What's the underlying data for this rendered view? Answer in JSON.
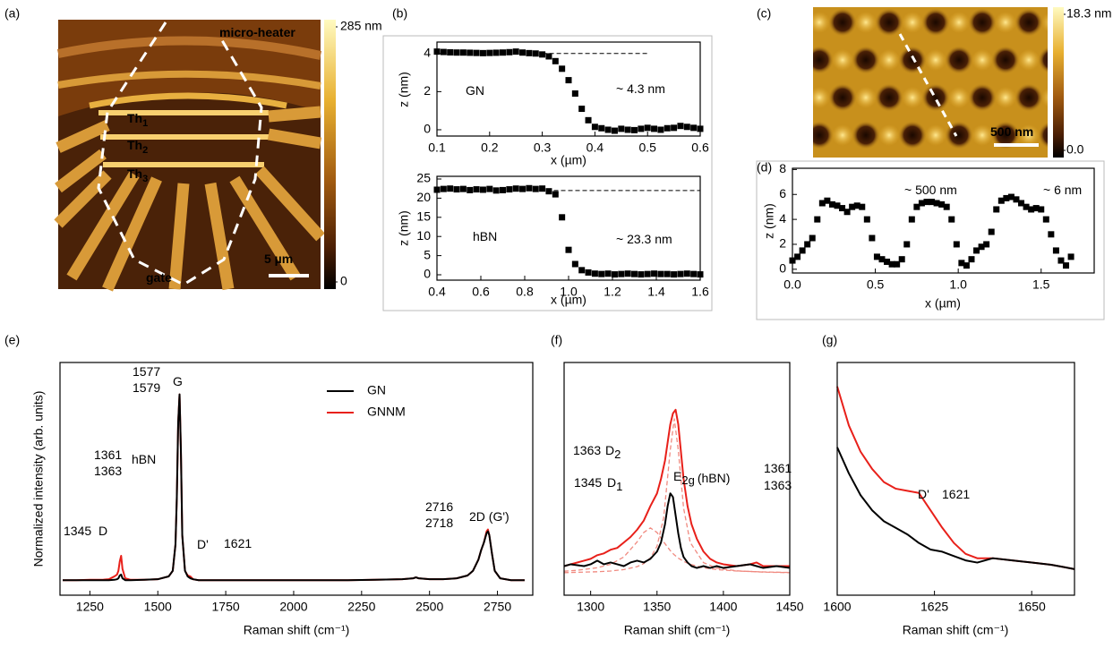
{
  "chart_data": [
    {
      "type": "image",
      "panel": "(a)",
      "colorbar": {
        "clim": [
          0,
          285
        ],
        "ticks": [
          {
            "value": 285,
            "label": "285 nm"
          },
          0
        ]
      },
      "labels": [
        {
          "text": "micro-heater"
        },
        {
          "text": "Th",
          "sub": "1"
        },
        {
          "text": "Th",
          "sub": "2"
        },
        {
          "text": "Th",
          "sub": "3"
        },
        {
          "text": "gate"
        },
        {
          "text": "5 µm"
        }
      ]
    },
    {
      "type": "scatter",
      "panel": "(b)",
      "xlabel": "x (µm)",
      "ylabel": "z (nm)",
      "xlim": [
        0.1,
        0.6
      ],
      "ylim": [
        -0.33,
        4.6
      ],
      "xticks": [
        0.1,
        0.2,
        0.3,
        0.4,
        0.5,
        0.6
      ],
      "yticks": [
        0,
        2,
        4
      ],
      "x": [
        0.1,
        0.1125,
        0.125,
        0.1375,
        0.15,
        0.1625,
        0.175,
        0.1875,
        0.2,
        0.2125,
        0.225,
        0.2375,
        0.25,
        0.2625,
        0.275,
        0.2875,
        0.3,
        0.3125,
        0.325,
        0.3375,
        0.35,
        0.3625,
        0.375,
        0.3875,
        0.4,
        0.4125,
        0.425,
        0.4375,
        0.45,
        0.4625,
        0.475,
        0.4875,
        0.5,
        0.5125,
        0.525,
        0.5375,
        0.55,
        0.5625,
        0.575,
        0.5875,
        0.6
      ],
      "series": [
        {
          "color": "#000000",
          "values": [
            4.1,
            4.08,
            4.06,
            4.05,
            4.05,
            4.04,
            4.03,
            4.02,
            4.03,
            4.04,
            4.05,
            4.07,
            4.1,
            4.05,
            4.02,
            4.0,
            3.95,
            3.85,
            3.6,
            3.2,
            2.6,
            1.9,
            1.1,
            0.5,
            0.15,
            0.08,
            0.0,
            -0.05,
            0.05,
            0.0,
            -0.02,
            0.05,
            0.1,
            0.05,
            0.0,
            0.08,
            0.1,
            0.2,
            0.15,
            0.1,
            0.05
          ]
        }
      ],
      "reference_line": {
        "y": 4.0,
        "x": [
          0.3,
          0.5
        ]
      },
      "annotations": [
        {
          "text": "GN"
        },
        {
          "text": "~ 4.3 nm"
        }
      ]
    },
    {
      "type": "scatter",
      "xlabel": "x (µm)",
      "ylabel": "z (nm)",
      "xlim": [
        0.4,
        1.6
      ],
      "ylim": [
        -1.4,
        25.7
      ],
      "xticks": [
        0.4,
        0.6,
        0.8,
        {
          "value": 1,
          "label": "1.0"
        },
        1.2,
        1.4,
        1.6
      ],
      "yticks": [
        0,
        5,
        10,
        15,
        20,
        25
      ],
      "x": [
        0.4,
        0.43,
        0.46,
        0.49,
        0.52,
        0.55,
        0.58,
        0.61,
        0.64,
        0.67,
        0.7,
        0.73,
        0.76,
        0.79,
        0.82,
        0.85,
        0.88,
        0.91,
        0.94,
        0.97,
        1.0,
        1.03,
        1.06,
        1.09,
        1.12,
        1.15,
        1.18,
        1.21,
        1.24,
        1.27,
        1.3,
        1.33,
        1.36,
        1.39,
        1.42,
        1.45,
        1.48,
        1.51,
        1.54,
        1.57,
        1.6
      ],
      "series": [
        {
          "color": "#000000",
          "values": [
            22.2,
            22.4,
            22.5,
            22.3,
            22.4,
            22.1,
            22.3,
            22.2,
            22.4,
            22.0,
            22.1,
            22.3,
            22.5,
            22.4,
            22.6,
            22.4,
            22.5,
            21.8,
            21.0,
            15.0,
            6.5,
            2.8,
            1.2,
            0.6,
            0.3,
            0.2,
            0.3,
            0.1,
            0.2,
            0.3,
            0.2,
            0.1,
            0.2,
            0.3,
            0.2,
            0.2,
            0.1,
            0.2,
            0.3,
            0.2,
            0.1
          ]
        }
      ],
      "reference_line": {
        "y": 22,
        "x": [
          0.9,
          1.6
        ]
      },
      "annotations": [
        {
          "text": "hBN"
        },
        {
          "text": "~ 23.3 nm"
        }
      ]
    },
    {
      "type": "image",
      "panel": "(c)",
      "colorbar": {
        "clim": [
          0,
          18.3
        ],
        "ticks": [
          {
            "value": 18.3,
            "label": "18.3 nm"
          },
          {
            "value": 0,
            "label": "0.0"
          }
        ]
      },
      "labels": [
        {
          "text": "500 nm"
        }
      ]
    },
    {
      "type": "scatter",
      "panel": "(d)",
      "xlabel": "x (µm)",
      "ylabel": "z (nm)",
      "xlim": [
        0,
        1.82
      ],
      "ylim": [
        -0.3,
        8.1
      ],
      "xticks": [
        {
          "value": 0,
          "label": "0.0"
        },
        0.5,
        {
          "value": 1,
          "label": "1.0"
        },
        1.5
      ],
      "yticks": [
        0,
        2,
        4,
        6,
        8
      ],
      "x": [
        0,
        0.03,
        0.06,
        0.09,
        0.12,
        0.15,
        0.18,
        0.21,
        0.24,
        0.27,
        0.3,
        0.33,
        0.36,
        0.39,
        0.42,
        0.45,
        0.48,
        0.51,
        0.54,
        0.57,
        0.6,
        0.63,
        0.66,
        0.69,
        0.72,
        0.75,
        0.78,
        0.81,
        0.84,
        0.87,
        0.9,
        0.93,
        0.96,
        0.99,
        1.02,
        1.05,
        1.08,
        1.11,
        1.14,
        1.17,
        1.2,
        1.23,
        1.26,
        1.29,
        1.32,
        1.35,
        1.38,
        1.41,
        1.44,
        1.47,
        1.5,
        1.53,
        1.56,
        1.59,
        1.62,
        1.65,
        1.68
      ],
      "series": [
        {
          "color": "#000000",
          "values": [
            0.7,
            1.0,
            1.5,
            2.0,
            2.5,
            4.0,
            5.3,
            5.5,
            5.2,
            5.1,
            4.9,
            4.6,
            5.0,
            5.1,
            5.0,
            4.0,
            2.5,
            1.0,
            0.8,
            0.6,
            0.4,
            0.4,
            0.8,
            2.0,
            4.0,
            5.0,
            5.3,
            5.4,
            5.4,
            5.3,
            5.2,
            5.0,
            4.0,
            2.0,
            0.5,
            0.3,
            0.8,
            1.5,
            1.8,
            2.0,
            3.0,
            4.8,
            5.5,
            5.7,
            5.8,
            5.6,
            5.3,
            5.0,
            4.8,
            4.9,
            4.8,
            4.0,
            2.8,
            1.5,
            0.7,
            0.3,
            1.0
          ]
        }
      ],
      "annotations": [
        {
          "text": "~ 500 nm"
        },
        {
          "text": "~ 6 nm"
        }
      ]
    },
    {
      "type": "line",
      "panel": "(e)",
      "xlabel": "Raman shift (cm⁻¹)",
      "ylabel": "Normalized intensity (arb. units)",
      "xlim": [
        1140,
        2880
      ],
      "ylim": [
        -0.07,
        1.17
      ],
      "xticks": [
        1250,
        1500,
        1750,
        2000,
        2250,
        2500,
        2750
      ],
      "legend": "upper right",
      "x": [
        1150,
        1200,
        1250,
        1300,
        1320,
        1340,
        1350,
        1355,
        1360,
        1365,
        1370,
        1380,
        1400,
        1450,
        1500,
        1540,
        1555,
        1565,
        1570,
        1575,
        1580,
        1585,
        1590,
        1600,
        1610,
        1620,
        1630,
        1650,
        1700,
        1800,
        1900,
        2000,
        2100,
        2200,
        2300,
        2400,
        2440,
        2450,
        2460,
        2500,
        2550,
        2600,
        2640,
        2660,
        2680,
        2690,
        2700,
        2710,
        2715,
        2720,
        2730,
        2740,
        2760,
        2800,
        2850
      ],
      "series": [
        {
          "name": "GN",
          "color": "#000000",
          "values": [
            0.01,
            0.01,
            0.01,
            0.01,
            0.01,
            0.012,
            0.015,
            0.02,
            0.035,
            0.04,
            0.02,
            0.01,
            0.01,
            0.012,
            0.015,
            0.03,
            0.06,
            0.2,
            0.45,
            0.85,
            1.0,
            0.7,
            0.25,
            0.06,
            0.03,
            0.02,
            0.015,
            0.01,
            0.01,
            0.01,
            0.01,
            0.01,
            0.01,
            0.01,
            0.012,
            0.015,
            0.02,
            0.025,
            0.02,
            0.015,
            0.015,
            0.02,
            0.035,
            0.06,
            0.12,
            0.17,
            0.21,
            0.26,
            0.27,
            0.25,
            0.15,
            0.06,
            0.02,
            0.01,
            0.01
          ]
        },
        {
          "name": "GNNM",
          "color": "#e8201a",
          "values": [
            0.01,
            0.01,
            0.012,
            0.013,
            0.015,
            0.03,
            0.04,
            0.06,
            0.11,
            0.14,
            0.07,
            0.02,
            0.012,
            0.012,
            0.015,
            0.03,
            0.06,
            0.2,
            0.45,
            0.85,
            1.0,
            0.7,
            0.25,
            0.06,
            0.035,
            0.03,
            0.015,
            0.01,
            0.01,
            0.01,
            0.01,
            0.01,
            0.01,
            0.01,
            0.012,
            0.015,
            0.02,
            0.025,
            0.02,
            0.015,
            0.015,
            0.02,
            0.035,
            0.06,
            0.12,
            0.17,
            0.21,
            0.27,
            0.28,
            0.25,
            0.15,
            0.06,
            0.02,
            0.01,
            0.01
          ]
        }
      ],
      "annotations": [
        {
          "text": "1577"
        },
        {
          "text": "1579",
          "color": "#e8201a"
        },
        {
          "text": "G"
        },
        {
          "text": "1361"
        },
        {
          "text": "1363",
          "color": "#e8201a"
        },
        {
          "text": "hBN"
        },
        {
          "text": "1345",
          "color": "#e8201a"
        },
        {
          "text": "D"
        },
        {
          "text": "D'"
        },
        {
          "text": "1621",
          "color": "#e8201a"
        },
        {
          "text": "2716"
        },
        {
          "text": "2718",
          "color": "#e8201a"
        },
        {
          "text": "2D (G')"
        }
      ]
    },
    {
      "type": "line",
      "panel": "(f)",
      "xlabel": "Raman shift (cm⁻¹)",
      "xlim": [
        1280,
        1450
      ],
      "ylim": [
        -0.04,
        1.24
      ],
      "xticks": [
        1300,
        1350,
        1400,
        1450
      ],
      "x": [
        1280,
        1285,
        1295,
        1300,
        1305,
        1310,
        1315,
        1320,
        1325,
        1330,
        1335,
        1340,
        1345,
        1350,
        1353,
        1356,
        1358,
        1360,
        1362,
        1364,
        1366,
        1368,
        1370,
        1373,
        1376,
        1380,
        1385,
        1390,
        1395,
        1400,
        1410,
        1420,
        1425,
        1430,
        1440,
        1450
      ],
      "series": [
        {
          "color": "#000000",
          "values": [
            0.12,
            0.13,
            0.12,
            0.13,
            0.15,
            0.13,
            0.14,
            0.13,
            0.12,
            0.14,
            0.15,
            0.14,
            0.16,
            0.2,
            0.25,
            0.35,
            0.45,
            0.52,
            0.5,
            0.4,
            0.3,
            0.22,
            0.17,
            0.14,
            0.12,
            0.11,
            0.12,
            0.11,
            0.12,
            0.11,
            0.12,
            0.13,
            0.12,
            0.11,
            0.12,
            0.11
          ]
        },
        {
          "color": "#e8201a",
          "values": [
            0.12,
            0.13,
            0.15,
            0.16,
            0.18,
            0.19,
            0.21,
            0.22,
            0.25,
            0.28,
            0.32,
            0.37,
            0.45,
            0.52,
            0.6,
            0.7,
            0.8,
            0.9,
            0.96,
            0.98,
            0.9,
            0.75,
            0.6,
            0.45,
            0.35,
            0.27,
            0.2,
            0.16,
            0.14,
            0.13,
            0.12,
            0.13,
            0.14,
            0.12,
            0.12,
            0.12
          ]
        },
        {
          "color": "#f08a80",
          "style": "dashed",
          "x": [
            1280,
            1290,
            1305,
            1315,
            1325,
            1335,
            1340,
            1345,
            1350,
            1355,
            1360,
            1363,
            1366,
            1370,
            1375,
            1385,
            1395,
            1410,
            1430,
            1450
          ],
          "values": [
            0.092,
            0.097,
            0.111,
            0.13,
            0.17,
            0.253,
            0.305,
            0.33,
            0.305,
            0.253,
            0.205,
            0.182,
            0.164,
            0.146,
            0.13,
            0.111,
            0.101,
            0.093,
            0.088,
            0.085
          ]
        },
        {
          "color": "#f08a80",
          "style": "dashed",
          "x": [
            1280,
            1290,
            1305,
            1315,
            1325,
            1335,
            1340,
            1345,
            1350,
            1355,
            1360,
            1363,
            1366,
            1370,
            1375,
            1385,
            1395,
            1410,
            1430,
            1450
          ],
          "values": [
            0.084,
            0.086,
            0.089,
            0.093,
            0.101,
            0.117,
            0.134,
            0.165,
            0.229,
            0.386,
            0.76,
            0.93,
            0.76,
            0.44,
            0.25,
            0.139,
            0.109,
            0.094,
            0.087,
            0.084
          ]
        }
      ],
      "annotations": [
        {
          "text": "1363",
          "color": "#e8201a"
        },
        {
          "text": "D",
          "sub": "2"
        },
        {
          "text": "1345",
          "color": "#e8201a"
        },
        {
          "text": "D",
          "sub": "1"
        },
        {
          "text": "E",
          "sub": "2g",
          "after": "(hBN)"
        },
        {
          "text": "1361"
        },
        {
          "text": "1363",
          "color": "#e8201a"
        }
      ]
    },
    {
      "type": "line",
      "panel": "(g)",
      "xlabel": "Raman shift (cm⁻¹)",
      "xlim": [
        1600,
        1661
      ],
      "ylim": [
        -0.06,
        1.01
      ],
      "xticks": [
        1600,
        1625,
        1650
      ],
      "x": [
        1600,
        1603,
        1606,
        1609,
        1612,
        1615,
        1618,
        1621,
        1624,
        1627,
        1630,
        1633,
        1636,
        1640,
        1645,
        1650,
        1655,
        1658,
        1661
      ],
      "series": [
        {
          "color": "#000000",
          "values": [
            0.62,
            0.5,
            0.4,
            0.33,
            0.28,
            0.25,
            0.22,
            0.18,
            0.15,
            0.14,
            0.12,
            0.1,
            0.09,
            0.11,
            0.1,
            0.09,
            0.08,
            0.07,
            0.06
          ]
        },
        {
          "color": "#e8201a",
          "values": [
            0.9,
            0.72,
            0.6,
            0.52,
            0.46,
            0.43,
            0.42,
            0.41,
            0.33,
            0.25,
            0.18,
            0.13,
            0.11,
            0.11,
            0.1,
            0.09,
            0.08,
            0.07,
            0.06
          ]
        }
      ],
      "annotations": [
        {
          "text": "D'"
        },
        {
          "text": "1621",
          "color": "#e8201a"
        }
      ]
    }
  ]
}
